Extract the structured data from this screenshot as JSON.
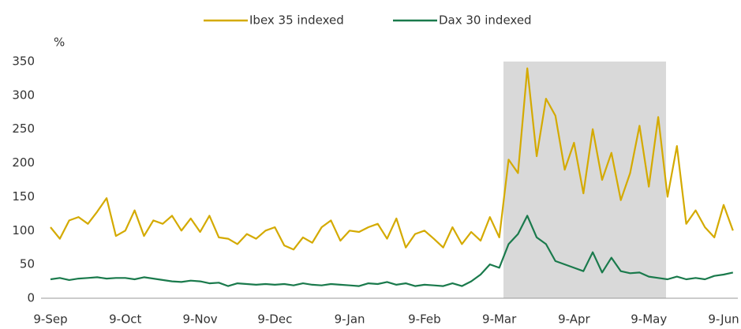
{
  "chart_data": {
    "type": "line",
    "y_label": "%",
    "categories": [
      "9-Sep",
      null,
      null,
      null,
      null,
      null,
      null,
      null,
      "9-Oct",
      null,
      null,
      null,
      null,
      null,
      null,
      null,
      "9-Nov",
      null,
      null,
      null,
      null,
      null,
      null,
      null,
      "9-Dec",
      null,
      null,
      null,
      null,
      null,
      null,
      null,
      "9-Jan",
      null,
      null,
      null,
      null,
      null,
      null,
      null,
      "9-Feb",
      null,
      null,
      null,
      null,
      null,
      null,
      null,
      "9-Mar",
      null,
      null,
      null,
      null,
      null,
      null,
      null,
      "9-Apr",
      null,
      null,
      null,
      null,
      null,
      null,
      null,
      "9-May",
      null,
      null,
      null,
      null,
      null,
      null,
      null,
      "9-Jun",
      null
    ],
    "series": [
      {
        "name": "Ibex 35 indexed",
        "color": "#d4aa00",
        "values": [
          105,
          88,
          115,
          120,
          110,
          128,
          148,
          92,
          100,
          130,
          92,
          115,
          110,
          122,
          100,
          118,
          98,
          122,
          90,
          88,
          80,
          95,
          88,
          100,
          105,
          78,
          72,
          90,
          82,
          105,
          115,
          85,
          100,
          98,
          105,
          110,
          88,
          118,
          75,
          95,
          100,
          88,
          75,
          105,
          80,
          98,
          85,
          120,
          90,
          205,
          185,
          340,
          210,
          295,
          270,
          190,
          230,
          155,
          250,
          175,
          215,
          145,
          185,
          255,
          165,
          268,
          150,
          225,
          110,
          130,
          105,
          90,
          138,
          100
        ]
      },
      {
        "name": "Dax 30 indexed",
        "color": "#1a7a4c",
        "values": [
          28,
          30,
          27,
          29,
          30,
          31,
          29,
          30,
          30,
          28,
          31,
          29,
          27,
          25,
          24,
          26,
          25,
          22,
          23,
          18,
          22,
          21,
          20,
          21,
          20,
          21,
          19,
          22,
          20,
          19,
          21,
          20,
          19,
          18,
          22,
          21,
          24,
          20,
          22,
          18,
          20,
          19,
          18,
          22,
          18,
          25,
          35,
          50,
          45,
          80,
          95,
          122,
          90,
          80,
          55,
          50,
          45,
          40,
          68,
          38,
          60,
          40,
          37,
          38,
          32,
          30,
          28,
          32,
          28,
          30,
          28,
          33,
          35,
          38
        ]
      }
    ],
    "ylim": [
      0,
      350
    ],
    "yticks": [
      0,
      50,
      100,
      150,
      200,
      250,
      300,
      350
    ],
    "grid": false,
    "legend": "top"
  }
}
